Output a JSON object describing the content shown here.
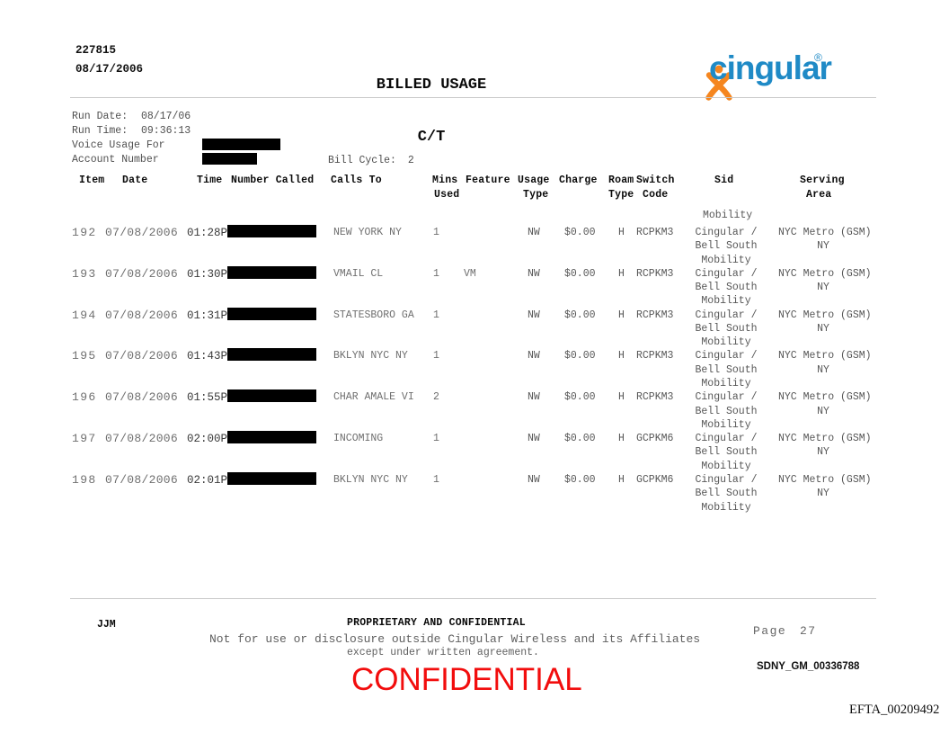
{
  "header": {
    "doc_number": "227815",
    "doc_date": "08/17/2006",
    "title": "BILLED USAGE",
    "subtitle": "C/T",
    "logo_text": "cingular",
    "logo_registered": "®"
  },
  "run_info": {
    "run_date_label": "Run Date:",
    "run_date": "08/17/06",
    "run_time_label": "Run Time:",
    "run_time": "09:36:13",
    "voice_usage_label": "Voice Usage For",
    "account_label": "Account Number",
    "bill_cycle_label": "Bill Cycle:",
    "bill_cycle": "2"
  },
  "table": {
    "headers": {
      "item": "Item",
      "date": "Date",
      "time": "Time",
      "number_called": "Number Called",
      "calls_to": "Calls To",
      "mins": "Mins",
      "used": "Used",
      "feature": "Feature",
      "usage": "Usage",
      "usage_type": "Type",
      "charge": "Charge",
      "roam": "Roam",
      "roam_type": "Type",
      "switch": "Switch",
      "code": "Code",
      "sid": "Sid",
      "serving": "Serving",
      "area": "Area"
    },
    "sid_continuation": "Mobility",
    "rows": [
      {
        "item": "192",
        "date": "07/08/2006",
        "time": "01:28P",
        "calls_to": "NEW YORK NY",
        "mins": "1",
        "feature": "",
        "usage_type": "NW",
        "charge": "$0.00",
        "roam_type": "H",
        "switch_code": "RCPKM3",
        "sid": [
          "Cingular /",
          "Bell South",
          "Mobility"
        ],
        "serving_area": [
          "NYC Metro (GSM)",
          "NY"
        ]
      },
      {
        "item": "193",
        "date": "07/08/2006",
        "time": "01:30P",
        "calls_to": "VMAIL CL",
        "mins": "1",
        "feature": "VM",
        "usage_type": "NW",
        "charge": "$0.00",
        "roam_type": "H",
        "switch_code": "RCPKM3",
        "sid": [
          "Cingular /",
          "Bell South",
          "Mobility"
        ],
        "serving_area": [
          "NYC Metro (GSM)",
          "NY"
        ]
      },
      {
        "item": "194",
        "date": "07/08/2006",
        "time": "01:31P",
        "calls_to": "STATESBORO GA",
        "mins": "1",
        "feature": "",
        "usage_type": "NW",
        "charge": "$0.00",
        "roam_type": "H",
        "switch_code": "RCPKM3",
        "sid": [
          "Cingular /",
          "Bell South",
          "Mobility"
        ],
        "serving_area": [
          "NYC Metro (GSM)",
          "NY"
        ]
      },
      {
        "item": "195",
        "date": "07/08/2006",
        "time": "01:43P",
        "calls_to": "BKLYN NYC NY",
        "mins": "1",
        "feature": "",
        "usage_type": "NW",
        "charge": "$0.00",
        "roam_type": "H",
        "switch_code": "RCPKM3",
        "sid": [
          "Cingular /",
          "Bell South",
          "Mobility"
        ],
        "serving_area": [
          "NYC Metro (GSM)",
          "NY"
        ]
      },
      {
        "item": "196",
        "date": "07/08/2006",
        "time": "01:55P",
        "calls_to": "CHAR AMALE VI",
        "mins": "2",
        "feature": "",
        "usage_type": "NW",
        "charge": "$0.00",
        "roam_type": "H",
        "switch_code": "RCPKM3",
        "sid": [
          "Cingular /",
          "Bell South",
          "Mobility"
        ],
        "serving_area": [
          "NYC Metro (GSM)",
          "NY"
        ]
      },
      {
        "item": "197",
        "date": "07/08/2006",
        "time": "02:00P",
        "calls_to": "INCOMING",
        "mins": "1",
        "feature": "",
        "usage_type": "NW",
        "charge": "$0.00",
        "roam_type": "H",
        "switch_code": "GCPKM6",
        "sid": [
          "Cingular /",
          "Bell South",
          "Mobility"
        ],
        "serving_area": [
          "NYC Metro (GSM)",
          "NY"
        ]
      },
      {
        "item": "198",
        "date": "07/08/2006",
        "time": "02:01P",
        "calls_to": "BKLYN NYC NY",
        "mins": "1",
        "feature": "",
        "usage_type": "NW",
        "charge": "$0.00",
        "roam_type": "H",
        "switch_code": "GCPKM6",
        "sid": [
          "Cingular /",
          "Bell South",
          "Mobility"
        ],
        "serving_area": [
          "NYC Metro (GSM)",
          "NY"
        ]
      }
    ]
  },
  "footer": {
    "initials": "JJM",
    "proprietary": "PROPRIETARY AND CONFIDENTIAL",
    "disclaimer1": "Not for use or disclosure outside Cingular Wireless and its Affiliates",
    "disclaimer2": "except under written agreement.",
    "confidential_stamp": "CONFIDENTIAL",
    "page_label": "Page",
    "page_number": "27",
    "bates_stamp_1": "SDNY_GM_00336788",
    "bates_stamp_2": "EFTA_00209492"
  },
  "colors": {
    "logo_orange": "#f5861f",
    "logo_blue": "#1f8ac6",
    "stamp_red": "#f20d0d",
    "redaction_black": "#000000"
  }
}
